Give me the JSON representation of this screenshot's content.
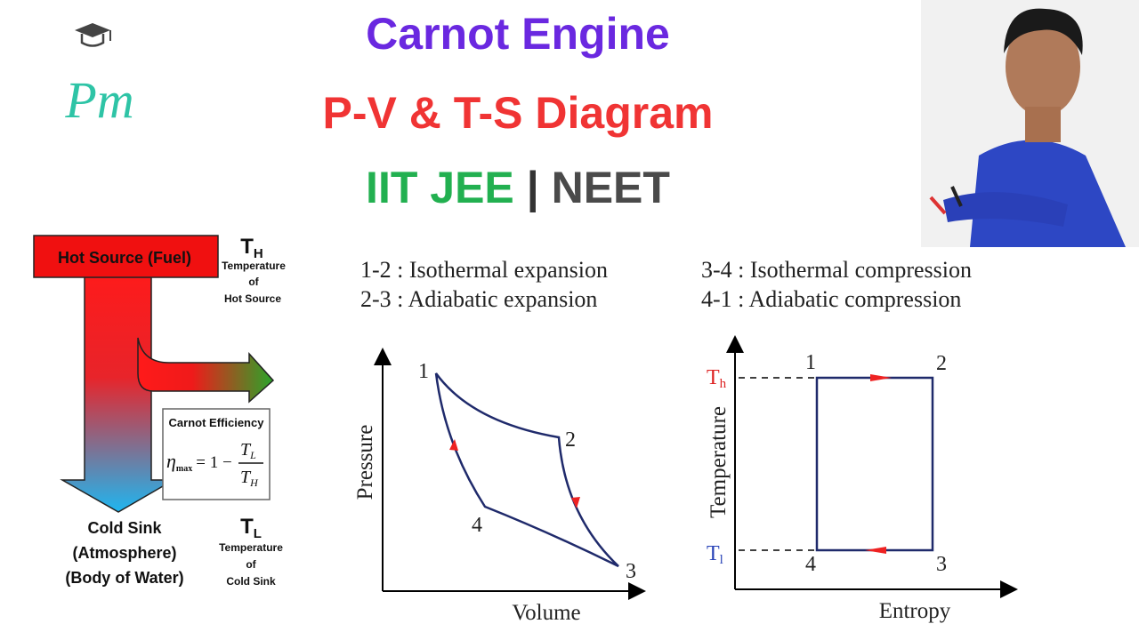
{
  "logo": {
    "text": "Pm"
  },
  "header": {
    "title": "Carnot Engine",
    "subtitle": "P-V & T-S Diagram",
    "exam_left": "IIT JEE",
    "separator": "|",
    "exam_right": "NEET"
  },
  "heat_engine": {
    "hot_source": "Hot Source (Fuel)",
    "t_hot": {
      "symbol": "T",
      "subscript": "H",
      "caption": [
        "Temperature",
        "of",
        "Hot Source"
      ]
    },
    "efficiency": {
      "title": "Carnot Efficiency",
      "eta": "η",
      "eta_sub": "max",
      "equals": "= 1 −",
      "numerator": {
        "symbol": "T",
        "subscript": "L"
      },
      "denominator": {
        "symbol": "T",
        "subscript": "H"
      }
    },
    "cold_sink": [
      "Cold Sink",
      "(Atmosphere)",
      "(Body of Water)"
    ],
    "t_cold": {
      "symbol": "T",
      "subscript": "L",
      "caption": [
        "Temperature",
        "of",
        "Cold Sink"
      ]
    }
  },
  "processes": [
    "1-2 : Isothermal expansion",
    "2-3 : Adiabatic expansion",
    "3-4 : Isothermal compression",
    "4-1 : Adiabatic compression"
  ],
  "pv_diagram": {
    "y_label": "Pressure",
    "x_label": "Volume",
    "points": [
      "1",
      "2",
      "3",
      "4"
    ]
  },
  "ts_diagram": {
    "y_label": "Temperature",
    "x_label": "Entropy",
    "t_high": {
      "symbol": "T",
      "subscript": "h"
    },
    "t_low": {
      "symbol": "T",
      "subscript": "l"
    },
    "points": [
      "1",
      "2",
      "3",
      "4"
    ]
  }
}
